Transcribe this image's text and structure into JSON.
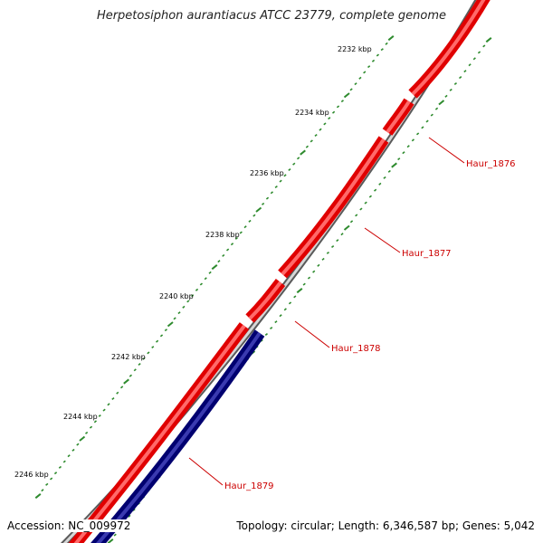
{
  "title": "Herpetosiphon aurantiacus ATCC 23779, complete genome",
  "footer": {
    "accession": "Accession: NC_009972",
    "summary": "Topology: circular; Length: 6,346,587 bp; Genes: 5,042"
  },
  "axis": {
    "tick_labels": [
      "2232 kbp",
      "2234 kbp",
      "2236 kbp",
      "2238 kbp",
      "2240 kbp",
      "2242 kbp",
      "2244 kbp",
      "2246 kbp"
    ]
  },
  "genes": [
    {
      "label": "Haur_1876",
      "strand": "forward",
      "color": "#ff0000"
    },
    {
      "label": "Haur_1877",
      "strand": "forward",
      "color": "#ff0000"
    },
    {
      "label": "Haur_1878",
      "strand": "forward",
      "color": "#ff0000"
    },
    {
      "label": "Haur_1879",
      "strand": "reverse",
      "color": "#000080"
    }
  ],
  "colors": {
    "backbone": "#8c8c8c",
    "forward_gene": "#ff0000",
    "reverse_gene": "#000080",
    "tick_marks": "#2e8b2e",
    "label_line": "#cc0000"
  }
}
